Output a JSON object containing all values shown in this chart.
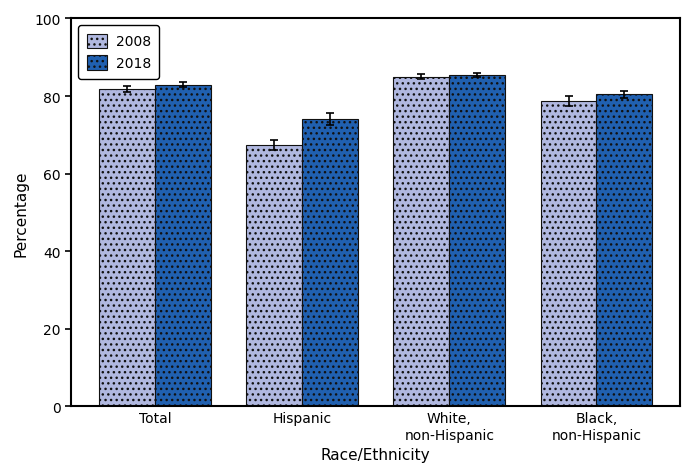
{
  "categories": [
    "Total",
    "Hispanic",
    "White,\nnon-Hispanic",
    "Black,\nnon-Hispanic"
  ],
  "values_2008": [
    81.8,
    67.3,
    85.0,
    78.7
  ],
  "values_2018": [
    82.9,
    74.1,
    85.5,
    80.4
  ],
  "errors_2008": [
    0.8,
    1.3,
    0.6,
    1.3
  ],
  "errors_2018": [
    0.6,
    1.5,
    0.5,
    1.0
  ],
  "color_2008": "#b0b8e0",
  "color_2018": "#2060b0",
  "edgecolor": "#111111",
  "ylabel": "Percentage",
  "xlabel": "Race/Ethnicity",
  "ylim": [
    0,
    100
  ],
  "yticks": [
    0,
    20,
    40,
    60,
    80,
    100
  ],
  "legend_labels": [
    "2008",
    "2018"
  ],
  "bar_width": 0.38,
  "errorbar_color": "black",
  "errorbar_capsize": 3,
  "errorbar_linewidth": 1.2,
  "background_color": "#ffffff",
  "axis_linewidth": 1.5,
  "hatch_2008": "...",
  "hatch_2018": "..."
}
